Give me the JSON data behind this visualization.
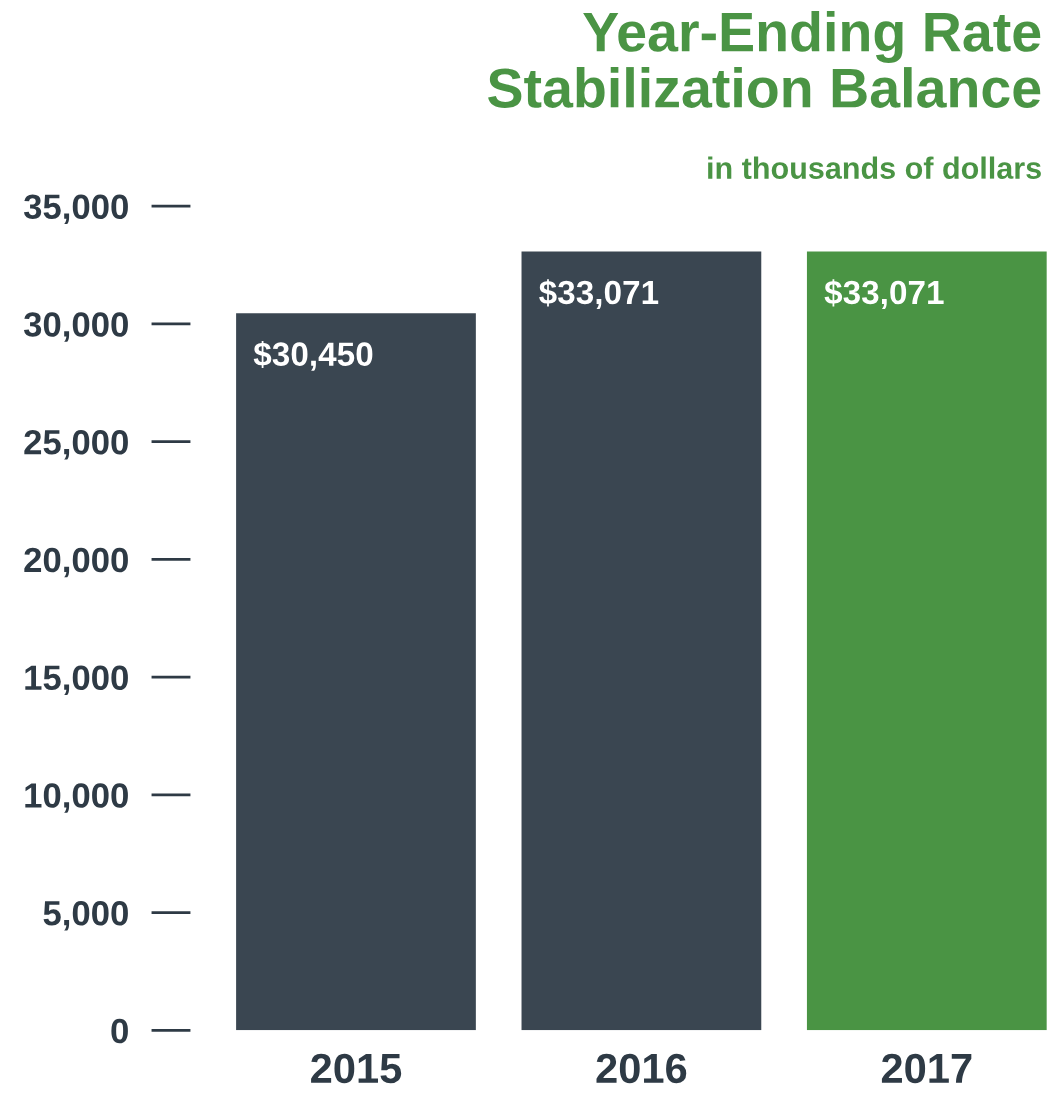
{
  "chart_data": {
    "type": "bar",
    "title": "Year-Ending Rate\nStabilization Balance",
    "subtitle": "in thousands of dollars",
    "categories": [
      "2015",
      "2016",
      "2017"
    ],
    "values": [
      30450,
      33071,
      33071
    ],
    "colors": [
      "#3a4651",
      "#3a4651",
      "#4a9444"
    ],
    "value_labels": [
      "$30,450",
      "$33,071",
      "$33,071"
    ],
    "ylim": [
      0,
      35000
    ],
    "yticks": [
      {
        "value": 0,
        "label": "0"
      },
      {
        "value": 5000,
        "label": "5,000"
      },
      {
        "value": 10000,
        "label": "10,000"
      },
      {
        "value": 15000,
        "label": "15,000"
      },
      {
        "value": 20000,
        "label": "20,000"
      },
      {
        "value": 25000,
        "label": "25,000"
      },
      {
        "value": 30000,
        "label": "30,000"
      },
      {
        "value": 35000,
        "label": "35,000"
      }
    ],
    "grid": false
  }
}
